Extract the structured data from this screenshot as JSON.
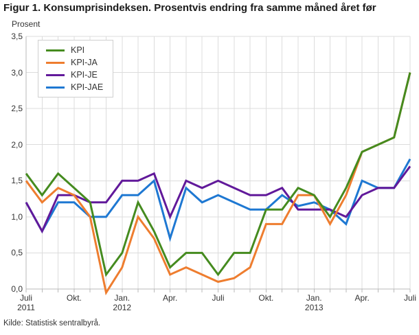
{
  "figure": {
    "title": "Figur 1. Konsumprisindeksen. Prosentvis endring fra samme måned året før",
    "y_axis_unit": "Prosent",
    "source": "Kilde: Statistisk sentralbyrå."
  },
  "colors": {
    "kpi_green": "#458b1f",
    "kpi_ja_orange": "#ee7d2f",
    "kpi_je_purple": "#61199a",
    "kpi_jae_blue": "#1e78d2",
    "grid": "#dcdcdc",
    "axis": "#b9b9b9",
    "text": "#333333"
  },
  "chart_data": {
    "type": "line",
    "x_months": [
      "2011-07",
      "2011-08",
      "2011-09",
      "2011-10",
      "2011-11",
      "2011-12",
      "2012-01",
      "2012-02",
      "2012-03",
      "2012-04",
      "2012-05",
      "2012-06",
      "2012-07",
      "2012-08",
      "2012-09",
      "2012-10",
      "2012-11",
      "2012-12",
      "2013-01",
      "2013-02",
      "2013-03",
      "2013-04",
      "2013-05",
      "2013-06",
      "2013-07"
    ],
    "series": [
      {
        "name": "KPI",
        "color": "#458b1f",
        "values": [
          1.6,
          1.3,
          1.6,
          1.4,
          1.2,
          0.2,
          0.5,
          1.2,
          0.8,
          0.3,
          0.5,
          0.5,
          0.2,
          0.5,
          0.5,
          1.1,
          1.1,
          1.4,
          1.3,
          1.0,
          1.4,
          1.9,
          2.0,
          2.1,
          3.0
        ]
      },
      {
        "name": "KPI-JA",
        "color": "#ee7d2f",
        "values": [
          1.5,
          1.2,
          1.4,
          1.3,
          1.0,
          -0.05,
          0.3,
          1.0,
          0.7,
          0.2,
          0.3,
          0.2,
          0.1,
          0.15,
          0.3,
          0.9,
          0.9,
          1.3,
          1.3,
          0.9,
          1.3,
          1.9,
          2.0,
          2.1,
          3.0
        ]
      },
      {
        "name": "KPI-JE",
        "color": "#61199a",
        "values": [
          1.2,
          0.8,
          1.3,
          1.3,
          1.2,
          1.2,
          1.5,
          1.5,
          1.6,
          1.0,
          1.5,
          1.4,
          1.5,
          1.4,
          1.3,
          1.3,
          1.4,
          1.1,
          1.1,
          1.1,
          1.0,
          1.3,
          1.4,
          1.4,
          1.7
        ]
      },
      {
        "name": "KPI-JAE",
        "color": "#1e78d2",
        "values": [
          1.2,
          0.8,
          1.2,
          1.2,
          1.0,
          1.0,
          1.3,
          1.3,
          1.5,
          0.7,
          1.4,
          1.2,
          1.3,
          1.2,
          1.1,
          1.1,
          1.3,
          1.15,
          1.2,
          1.1,
          0.9,
          1.5,
          1.4,
          1.4,
          1.8
        ]
      }
    ],
    "ylim": [
      0,
      3.5
    ],
    "y_tick_step": 0.5,
    "y_tick_labels": [
      "0,0",
      "0,5",
      "1,0",
      "1,5",
      "2,0",
      "2,5",
      "3,0",
      "3,5"
    ],
    "x_ticks": [
      {
        "index": 0,
        "lines": [
          "Juli",
          "2011"
        ]
      },
      {
        "index": 3,
        "lines": [
          "Okt."
        ]
      },
      {
        "index": 6,
        "lines": [
          "Jan.",
          "2012"
        ]
      },
      {
        "index": 9,
        "lines": [
          "Apr."
        ]
      },
      {
        "index": 12,
        "lines": [
          "Juli"
        ]
      },
      {
        "index": 15,
        "lines": [
          "Okt."
        ]
      },
      {
        "index": 18,
        "lines": [
          "Jan.",
          "2013"
        ]
      },
      {
        "index": 21,
        "lines": [
          "Apr."
        ]
      },
      {
        "index": 24,
        "lines": [
          "Juli"
        ]
      }
    ],
    "grid": true,
    "legend_position": "top-left-inside"
  }
}
